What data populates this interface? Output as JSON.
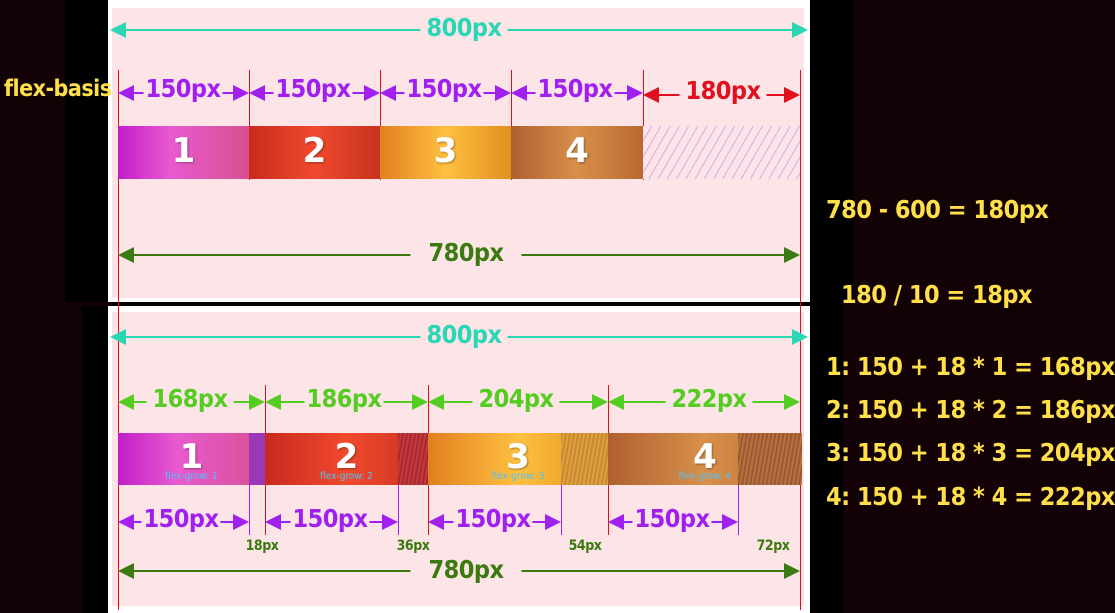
{
  "top": {
    "container_label": "800px",
    "row_label": "flex-basis",
    "items": [
      {
        "label": "150px",
        "number": "1"
      },
      {
        "label": "150px",
        "number": "2"
      },
      {
        "label": "150px",
        "number": "3"
      },
      {
        "label": "150px",
        "number": "4"
      }
    ],
    "remaining_label": "180px",
    "total_label": "780px"
  },
  "bottom": {
    "container_label": "800px",
    "items": [
      {
        "label": "168px",
        "number": "1",
        "grow": "flex-grow: 1",
        "basis": "150px",
        "extra": "18px"
      },
      {
        "label": "186px",
        "number": "2",
        "grow": "flex-grow: 2",
        "basis": "150px",
        "extra": "36px"
      },
      {
        "label": "204px",
        "number": "3",
        "grow": "flex-grow: 3",
        "basis": "150px",
        "extra": "54px"
      },
      {
        "label": "222px",
        "number": "4",
        "grow": "flex-grow: 4",
        "basis": "150px",
        "extra": "72px"
      }
    ],
    "total_label": "780px"
  },
  "formulas": [
    "780 - 600 = 180px",
    "180 / 10 = 18px",
    "1:  150 + 18 * 1 = 168px",
    "2:  150 + 18 * 2 = 186px",
    "3:  150 + 18 * 3 = 204px",
    "4:  150 + 18 * 4 = 222px"
  ],
  "colors": {
    "container": "#2ad6b4",
    "basis": "#a020f0",
    "remaining": "#e0101e",
    "total": "#3a7a10",
    "computed": "#55cc22",
    "extra": "#3a7a10",
    "formula": "#ffe04a",
    "grow_text": "#4fc3f7"
  }
}
